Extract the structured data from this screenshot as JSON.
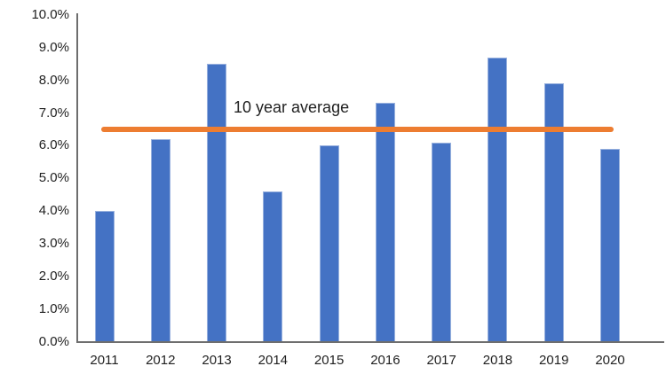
{
  "chart_data": {
    "type": "bar",
    "categories": [
      "2011",
      "2012",
      "2013",
      "2014",
      "2015",
      "2016",
      "2017",
      "2018",
      "2019",
      "2020"
    ],
    "values": [
      4.0,
      6.2,
      8.5,
      4.6,
      6.0,
      7.3,
      6.1,
      8.7,
      7.9,
      5.9
    ],
    "title": "",
    "xlabel": "",
    "ylabel": "",
    "ylim": [
      0,
      10
    ],
    "ytick_step": 1,
    "ytick_suffix": "%",
    "grid": "off",
    "average_line": {
      "label": "10 year average",
      "value": 6.5
    },
    "colors": {
      "bar": "#4472C4",
      "average_line": "#ED7D31",
      "text": "#1f1f1f",
      "axis": "#6e6e6e"
    }
  }
}
